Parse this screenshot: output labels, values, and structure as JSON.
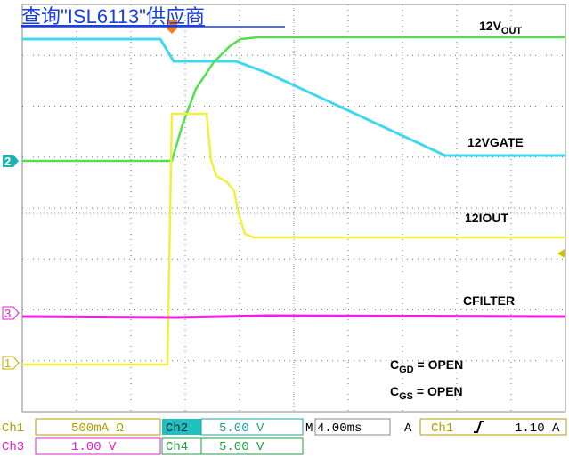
{
  "link": "查询\"ISL6113\"供应商",
  "labels": {
    "out": {
      "main": "12V",
      "sub": "OUT"
    },
    "gate": "12VGATE",
    "iout": "12IOUT",
    "cfilter": "CFILTER",
    "cgd": {
      "main": "C",
      "sub": "GD",
      "rest": " = OPEN"
    },
    "cgs": {
      "main": "C",
      "sub": "GS",
      "rest": " = OPEN"
    }
  },
  "markers": [
    "2",
    "3",
    "1"
  ],
  "status": {
    "ch1": "Ch1",
    "ch1_scale": "500mA Ω",
    "ch2": "Ch2",
    "ch2_scale": "5.00 V",
    "time_prefix": "M",
    "time_scale": "4.00ms",
    "trig_mode": "A",
    "trig_source": "Ch1",
    "trig_level": "1.10 A",
    "ch3": "Ch3",
    "ch3_scale": "1.00 V",
    "ch4": "Ch4",
    "ch4_scale": "5.00 V"
  }
}
